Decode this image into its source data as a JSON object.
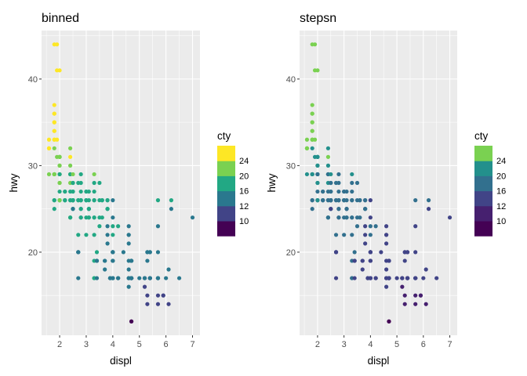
{
  "chart_data": [
    {
      "type": "scatter",
      "title": "binned",
      "xlabel": "displ",
      "ylabel": "hwy",
      "xlim": [
        1.32,
        7.28
      ],
      "ylim": [
        10.4,
        45.6
      ],
      "xticks": [
        2,
        3,
        4,
        5,
        6,
        7
      ],
      "yticks": [
        20,
        30,
        40
      ],
      "grid": true,
      "legend": {
        "title": "cty",
        "position": "right",
        "breaks": [
          10,
          12,
          16,
          20,
          24
        ],
        "bins": [
          {
            "color": "#440154"
          },
          {
            "color": "#414487"
          },
          {
            "color": "#2A788E"
          },
          {
            "color": "#22A884"
          },
          {
            "color": "#7AD151"
          },
          {
            "color": "#FDE725"
          }
        ]
      }
    },
    {
      "type": "scatter",
      "title": "stepsn",
      "xlabel": "displ",
      "ylabel": "hwy",
      "xlim": [
        1.32,
        7.28
      ],
      "ylim": [
        10.4,
        45.6
      ],
      "xticks": [
        2,
        3,
        4,
        5,
        6,
        7
      ],
      "yticks": [
        20,
        30,
        40
      ],
      "grid": true,
      "legend": {
        "title": "cty",
        "position": "right",
        "breaks": [
          10,
          12,
          16,
          20,
          24
        ],
        "bins": [
          {
            "color": "#440154"
          },
          {
            "color": "#46206F"
          },
          {
            "color": "#414487"
          },
          {
            "color": "#32708E"
          },
          {
            "color": "#23908C"
          },
          {
            "color": "#7AD151"
          }
        ]
      }
    }
  ],
  "points": [
    [
      1.8,
      29,
      18
    ],
    [
      1.8,
      29,
      21
    ],
    [
      2.0,
      31,
      20
    ],
    [
      2.0,
      30,
      21
    ],
    [
      2.8,
      26,
      16
    ],
    [
      2.8,
      26,
      18
    ],
    [
      3.1,
      27,
      18
    ],
    [
      1.8,
      26,
      18
    ],
    [
      1.8,
      25,
      16
    ],
    [
      2.0,
      28,
      20
    ],
    [
      2.0,
      27,
      19
    ],
    [
      2.8,
      25,
      15
    ],
    [
      2.8,
      25,
      17
    ],
    [
      3.1,
      25,
      17
    ],
    [
      3.1,
      25,
      15
    ],
    [
      2.8,
      24,
      15
    ],
    [
      3.1,
      25,
      17
    ],
    [
      4.2,
      23,
      16
    ],
    [
      5.3,
      20,
      14
    ],
    [
      5.3,
      15,
      11
    ],
    [
      5.3,
      20,
      14
    ],
    [
      5.7,
      17,
      13
    ],
    [
      6.0,
      17,
      12
    ],
    [
      5.7,
      26,
      16
    ],
    [
      5.7,
      23,
      15
    ],
    [
      6.2,
      26,
      16
    ],
    [
      6.2,
      25,
      15
    ],
    [
      7.0,
      24,
      15
    ],
    [
      5.3,
      19,
      14
    ],
    [
      5.3,
      14,
      11
    ],
    [
      5.7,
      15,
      11
    ],
    [
      6.5,
      17,
      14
    ],
    [
      2.4,
      24,
      19
    ],
    [
      2.4,
      24,
      22
    ],
    [
      3.1,
      24,
      18
    ],
    [
      3.5,
      24,
      18
    ],
    [
      3.6,
      24,
      17
    ],
    [
      2.4,
      24,
      18
    ],
    [
      3.0,
      22,
      17
    ],
    [
      3.3,
      19,
      16
    ],
    [
      3.3,
      22,
      16
    ],
    [
      3.3,
      17,
      17
    ],
    [
      3.8,
      22,
      15
    ],
    [
      3.8,
      21,
      15
    ],
    [
      3.8,
      23,
      15
    ],
    [
      4.0,
      23,
      16
    ],
    [
      3.7,
      19,
      15
    ],
    [
      3.7,
      18,
      14
    ],
    [
      3.9,
      17,
      13
    ],
    [
      3.9,
      17,
      14
    ],
    [
      4.7,
      19,
      14
    ],
    [
      4.7,
      19,
      14
    ],
    [
      4.7,
      12,
      9
    ],
    [
      5.2,
      17,
      13
    ],
    [
      5.2,
      17,
      11
    ],
    [
      3.9,
      17,
      13
    ],
    [
      4.7,
      17,
      12
    ],
    [
      4.7,
      17,
      9
    ],
    [
      4.7,
      17,
      13
    ],
    [
      5.2,
      16,
      11
    ],
    [
      5.7,
      14,
      11
    ],
    [
      5.9,
      15,
      11
    ],
    [
      4.7,
      17,
      11
    ],
    [
      4.7,
      17,
      12
    ],
    [
      4.7,
      12,
      9
    ],
    [
      5.2,
      17,
      13
    ],
    [
      5.7,
      17,
      13
    ],
    [
      5.9,
      15,
      11
    ],
    [
      4.6,
      17,
      11
    ],
    [
      5.4,
      17,
      11
    ],
    [
      5.4,
      17,
      12
    ],
    [
      4.0,
      19,
      14
    ],
    [
      4.0,
      17,
      13
    ],
    [
      4.0,
      19,
      14
    ],
    [
      4.0,
      20,
      15
    ],
    [
      4.6,
      19,
      14
    ],
    [
      5.0,
      17,
      13
    ],
    [
      4.2,
      17,
      14
    ],
    [
      4.2,
      17,
      14
    ],
    [
      4.6,
      16,
      13
    ],
    [
      4.6,
      17,
      12
    ],
    [
      4.6,
      18,
      13
    ],
    [
      5.4,
      17,
      12
    ],
    [
      5.4,
      17,
      11
    ],
    [
      3.8,
      26,
      15
    ],
    [
      3.8,
      25,
      16
    ],
    [
      4.0,
      26,
      15
    ],
    [
      4.0,
      24,
      15
    ],
    [
      4.6,
      21,
      15
    ],
    [
      4.6,
      22,
      15
    ],
    [
      4.6,
      23,
      15
    ],
    [
      4.6,
      22,
      15
    ],
    [
      5.4,
      20,
      14
    ],
    [
      1.6,
      32,
      24
    ],
    [
      1.6,
      33,
      24
    ],
    [
      1.6,
      32,
      24
    ],
    [
      1.6,
      29,
      21
    ],
    [
      1.6,
      32,
      24
    ],
    [
      1.8,
      34,
      28
    ],
    [
      1.8,
      36,
      25
    ],
    [
      1.8,
      36,
      24
    ],
    [
      2.0,
      29,
      21
    ],
    [
      2.4,
      26,
      19
    ],
    [
      2.4,
      27,
      19
    ],
    [
      2.4,
      30,
      22
    ],
    [
      2.4,
      31,
      24
    ],
    [
      2.5,
      26,
      18
    ],
    [
      2.5,
      26,
      18
    ],
    [
      3.3,
      26,
      18
    ],
    [
      2.0,
      26,
      19
    ],
    [
      2.0,
      26,
      19
    ],
    [
      2.0,
      28,
      20
    ],
    [
      2.0,
      29,
      19
    ],
    [
      2.7,
      26,
      18
    ],
    [
      2.7,
      28,
      17
    ],
    [
      2.7,
      26,
      16
    ],
    [
      3.0,
      24,
      16
    ],
    [
      3.7,
      19,
      15
    ],
    [
      4.0,
      20,
      15
    ],
    [
      4.7,
      17,
      13
    ],
    [
      4.7,
      19,
      14
    ],
    [
      5.7,
      20,
      13
    ],
    [
      6.1,
      18,
      13
    ],
    [
      4.0,
      19,
      14
    ],
    [
      4.2,
      17,
      14
    ],
    [
      4.4,
      20,
      15
    ],
    [
      4.6,
      17,
      13
    ],
    [
      5.4,
      17,
      13
    ],
    [
      5.4,
      20,
      14
    ],
    [
      4.0,
      20,
      15
    ],
    [
      3.3,
      17,
      17
    ],
    [
      3.4,
      19,
      16
    ],
    [
      4.0,
      17,
      13
    ],
    [
      4.7,
      19,
      14
    ],
    [
      4.7,
      17,
      13
    ],
    [
      5.7,
      17,
      13
    ],
    [
      6.1,
      14,
      11
    ],
    [
      2.5,
      26,
      17
    ],
    [
      2.5,
      25,
      17
    ],
    [
      2.5,
      26,
      19
    ],
    [
      2.5,
      27,
      19
    ],
    [
      2.5,
      25,
      17
    ],
    [
      2.5,
      26,
      17
    ],
    [
      2.5,
      27,
      18
    ],
    [
      2.2,
      26,
      18
    ],
    [
      2.2,
      27,
      19
    ],
    [
      2.4,
      26,
      19
    ],
    [
      2.4,
      28,
      21
    ],
    [
      3.0,
      26,
      18
    ],
    [
      3.0,
      26,
      18
    ],
    [
      3.5,
      28,
      19
    ],
    [
      2.2,
      26,
      19
    ],
    [
      2.2,
      27,
      19
    ],
    [
      2.4,
      29,
      21
    ],
    [
      2.4,
      29,
      21
    ],
    [
      3.0,
      27,
      19
    ],
    [
      3.0,
      27,
      18
    ],
    [
      3.3,
      29,
      20
    ],
    [
      1.8,
      32,
      23
    ],
    [
      1.8,
      35,
      29
    ],
    [
      1.8,
      37,
      26
    ],
    [
      1.8,
      33,
      28
    ],
    [
      1.8,
      34,
      28
    ],
    [
      1.8,
      35,
      25
    ],
    [
      2.0,
      31,
      21
    ],
    [
      2.4,
      32,
      21
    ],
    [
      2.8,
      27,
      18
    ],
    [
      3.1,
      24,
      16
    ],
    [
      1.8,
      33,
      28
    ],
    [
      1.8,
      44,
      33
    ],
    [
      2.0,
      41,
      35
    ],
    [
      2.0,
      29,
      21
    ],
    [
      2.5,
      26,
      18
    ],
    [
      1.9,
      44,
      35
    ],
    [
      1.9,
      41,
      33
    ],
    [
      2.7,
      20,
      15
    ],
    [
      2.7,
      20,
      15
    ],
    [
      3.4,
      20,
      16
    ],
    [
      3.4,
      17,
      15
    ],
    [
      4.0,
      20,
      15
    ],
    [
      4.0,
      22,
      16
    ],
    [
      4.7,
      17,
      13
    ],
    [
      4.7,
      19,
      14
    ],
    [
      5.7,
      17,
      13
    ],
    [
      2.7,
      20,
      15
    ],
    [
      2.7,
      22,
      16
    ],
    [
      2.7,
      17,
      15
    ],
    [
      3.4,
      19,
      15
    ],
    [
      3.4,
      19,
      14
    ],
    [
      4.0,
      17,
      13
    ],
    [
      4.0,
      17,
      14
    ],
    [
      1.8,
      29,
      20
    ],
    [
      1.8,
      29,
      21
    ],
    [
      1.8,
      26,
      19
    ],
    [
      2.0,
      26,
      20
    ],
    [
      2.0,
      29,
      19
    ],
    [
      2.8,
      28,
      17
    ],
    [
      2.8,
      29,
      18
    ],
    [
      2.5,
      28,
      18
    ],
    [
      3.5,
      26,
      18
    ],
    [
      3.6,
      26,
      17
    ],
    [
      3.3,
      28,
      17
    ],
    [
      3.6,
      26,
      17
    ],
    [
      3.3,
      27,
      18
    ],
    [
      3.8,
      25,
      16
    ],
    [
      3.8,
      25,
      16
    ],
    [
      2.8,
      24,
      16
    ],
    [
      2.8,
      26,
      16
    ],
    [
      3.0,
      26,
      16
    ],
    [
      3.5,
      23,
      17
    ],
    [
      2.5,
      26,
      16
    ],
    [
      2.5,
      25,
      15
    ],
    [
      3.3,
      24,
      16
    ],
    [
      3.1,
      26,
      16
    ],
    [
      3.8,
      26,
      16
    ],
    [
      2.0,
      31,
      20
    ],
    [
      1.9,
      31,
      23
    ],
    [
      2.2,
      26,
      16
    ],
    [
      2.4,
      29,
      19
    ],
    [
      2.5,
      28,
      18
    ],
    [
      1.9,
      33,
      24
    ],
    [
      2.0,
      30,
      20
    ],
    [
      2.0,
      31,
      21
    ],
    [
      2.0,
      31,
      21
    ],
    [
      2.5,
      29,
      20
    ],
    [
      3.3,
      26,
      16
    ],
    [
      3.3,
      24,
      16
    ]
  ]
}
